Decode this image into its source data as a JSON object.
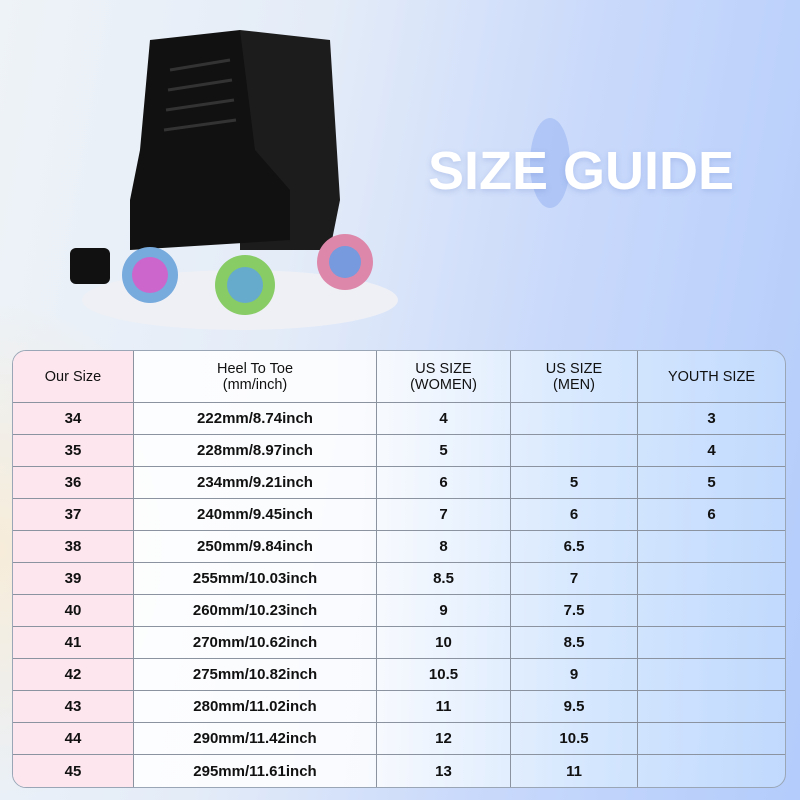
{
  "title": "SIZE GUIDE",
  "columns": [
    "Our Size",
    "Heel To Toe\n(mm/inch)",
    "US SIZE\n(WOMEN)",
    "US SIZE\n(MEN)",
    "YOUTH SIZE"
  ],
  "rows": [
    [
      "34",
      "222mm/8.74inch",
      "4",
      "",
      "3"
    ],
    [
      "35",
      "228mm/8.97inch",
      "5",
      "",
      "4"
    ],
    [
      "36",
      "234mm/9.21inch",
      "6",
      "5",
      "5"
    ],
    [
      "37",
      "240mm/9.45inch",
      "7",
      "6",
      "6"
    ],
    [
      "38",
      "250mm/9.84inch",
      "8",
      "6.5",
      ""
    ],
    [
      "39",
      "255mm/10.03inch",
      "8.5",
      "7",
      ""
    ],
    [
      "40",
      "260mm/10.23inch",
      "9",
      "7.5",
      ""
    ],
    [
      "41",
      "270mm/10.62inch",
      "10",
      "8.5",
      ""
    ],
    [
      "42",
      "275mm/10.82inch",
      "10.5",
      "9",
      ""
    ],
    [
      "43",
      "280mm/11.02inch",
      "11",
      "9.5",
      ""
    ],
    [
      "44",
      "290mm/11.42inch",
      "12",
      "10.5",
      ""
    ],
    [
      "45",
      "295mm/11.61inch",
      "13",
      "11",
      ""
    ]
  ],
  "colors": {
    "skate": "#141414",
    "header_first_col": "#fde6ee",
    "border": "#8b93a0"
  }
}
